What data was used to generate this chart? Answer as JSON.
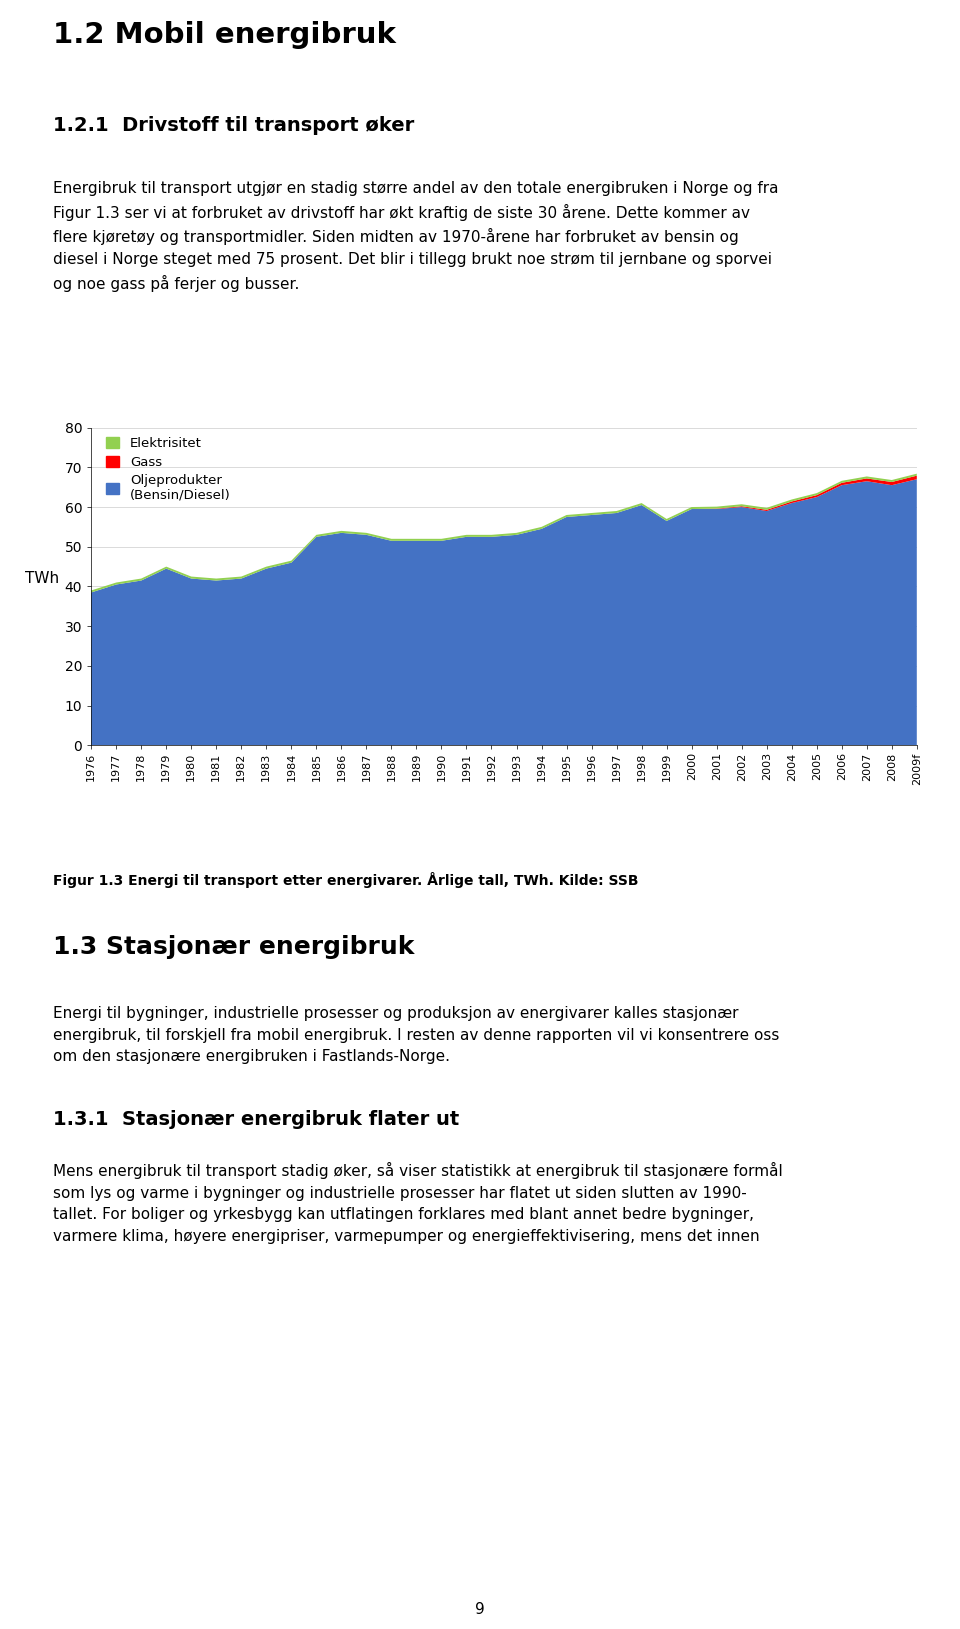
{
  "years": [
    "1976",
    "1977",
    "1978",
    "1979",
    "1980",
    "1981",
    "1982",
    "1983",
    "1984",
    "1985",
    "1986",
    "1987",
    "1988",
    "1989",
    "1990",
    "1991",
    "1992",
    "1993",
    "1994",
    "1995",
    "1996",
    "1997",
    "1998",
    "1999",
    "2000",
    "2001",
    "2002",
    "2003",
    "2004",
    "2005",
    "2006",
    "2007",
    "2008",
    "2009f"
  ],
  "olje": [
    38.5,
    40.5,
    41.5,
    44.5,
    42.0,
    41.5,
    42.0,
    44.5,
    46.0,
    52.5,
    53.5,
    53.0,
    51.5,
    51.5,
    51.5,
    52.5,
    52.5,
    53.0,
    54.5,
    57.5,
    58.0,
    58.5,
    60.5,
    56.5,
    59.5,
    59.5,
    60.0,
    59.0,
    61.0,
    62.5,
    65.5,
    66.5,
    65.5,
    67.0
  ],
  "gass": [
    0.0,
    0.0,
    0.0,
    0.0,
    0.0,
    0.0,
    0.0,
    0.0,
    0.0,
    0.0,
    0.0,
    0.0,
    0.0,
    0.0,
    0.0,
    0.0,
    0.0,
    0.0,
    0.0,
    0.0,
    0.0,
    0.0,
    0.0,
    0.0,
    0.0,
    0.1,
    0.2,
    0.3,
    0.4,
    0.5,
    0.6,
    0.7,
    0.8,
    0.9
  ],
  "elektrisitet": [
    0.5,
    0.5,
    0.5,
    0.5,
    0.5,
    0.5,
    0.5,
    0.5,
    0.5,
    0.5,
    0.5,
    0.5,
    0.5,
    0.5,
    0.5,
    0.5,
    0.5,
    0.5,
    0.5,
    0.5,
    0.5,
    0.5,
    0.5,
    0.5,
    0.5,
    0.5,
    0.5,
    0.5,
    0.5,
    0.5,
    0.5,
    0.5,
    0.5,
    0.5
  ],
  "color_olje": "#4472C4",
  "color_gass": "#FF0000",
  "color_elektrisitet": "#92D050",
  "ylabel": "TWh",
  "ylim": [
    0,
    80
  ],
  "yticks": [
    0,
    10,
    20,
    30,
    40,
    50,
    60,
    70,
    80
  ],
  "legend_elektrisitet": "Elektrisitet",
  "legend_gass": "Gass",
  "legend_olje": "Oljeprodukter\n(Bensin/Diesel)",
  "caption": "Figur 1.3 Energi til transport etter energivarer. Årlige tall, TWh. Kilde: SSB",
  "title_h1": "1.2 Mobil energibruk",
  "title_h2": "1.2.1  Drivstoff til transport øker",
  "body_text1": "Energibruk til transport utgjør en stadig større andel av den totale energibruken i Norge og fra\nFigur 1.3 ser vi at forbruket av drivstoff har økt kraftig de siste 30 årene. Dette kommer av\nflere kjøretøy og transportmidler. Siden midten av 1970-årene har forbruket av bensin og\ndiesel i Norge steget med 75 prosent. Det blir i tillegg brukt noe strøm til jernbane og sporvei\nog noe gass på ferjer og busser.",
  "title_h3": "1.3 Stasjonær energibruk",
  "body_text2": "Energi til bygninger, industrielle prosesser og produksjon av energivarer kalles stasjonær\nenergibruk, til forskjell fra mobil energibruk. I resten av denne rapporten vil vi konsentrere oss\nom den stasjonære energibruken i Fastlands-Norge.",
  "title_h4": "1.3.1  Stasjonær energibruk flater ut",
  "body_text3": "Mens energibruk til transport stadig øker, så viser statistikk at energibruk til stasjonære formål\nsom lys og varme i bygninger og industrielle prosesser har flatet ut siden slutten av 1990-\ntallet. For boliger og yrkesbygg kan utflatingen forklares med blant annet bedre bygninger,\nvarmere klima, høyere energipriser, varmepumper og energieffektivisering, mens det innen",
  "page_number": "9",
  "background_color": "#FFFFFF"
}
